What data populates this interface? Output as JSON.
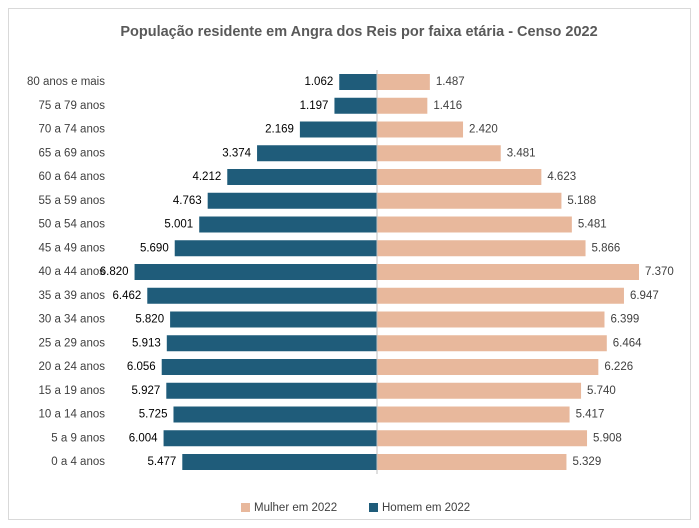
{
  "chart_data": {
    "type": "pyramid",
    "title": "População residente em Angra dos Reis por faixa etária - Censo 2022",
    "categories": [
      "80 anos e mais",
      "75 a 79 anos",
      "70 a 74 anos",
      "65 a 69 anos",
      "60 a 64 anos",
      "55 a 59 anos",
      "50 a 54 anos",
      "45 a 49 anos",
      "40 a 44 anos",
      "35 a 39 anos",
      "30 a 34 anos",
      "25 a 29 anos",
      "20 a 24 anos",
      "15 a 19 anos",
      "10 a 14 anos",
      "5 a 9 anos",
      "0 a 4 anos"
    ],
    "series": [
      {
        "name": "Mulher em 2022",
        "color": "#e8b89c",
        "values": [
          1487,
          1416,
          2420,
          3481,
          4623,
          5188,
          5481,
          5866,
          7370,
          6947,
          6399,
          6464,
          6226,
          5740,
          5417,
          5908,
          5329
        ],
        "value_labels": [
          "1.487",
          "1.416",
          "2.420",
          "3.481",
          "4.623",
          "5.188",
          "5.481",
          "5.866",
          "7.370",
          "6.947",
          "6.399",
          "6.464",
          "6.226",
          "5.740",
          "5.417",
          "5.908",
          "5.329"
        ]
      },
      {
        "name": "Homem em 2022",
        "color": "#1f5c7a",
        "values": [
          1062,
          1197,
          2169,
          3374,
          4212,
          4763,
          5001,
          5690,
          6820,
          6462,
          5820,
          5913,
          6056,
          5927,
          5725,
          6004,
          5477
        ],
        "value_labels": [
          "1.062",
          "1.197",
          "2.169",
          "3.374",
          "4.212",
          "4.763",
          "5.001",
          "5.690",
          "6.820",
          "6.462",
          "5.820",
          "5.913",
          "6.056",
          "5.927",
          "5.725",
          "6.004",
          "5.477"
        ]
      }
    ]
  }
}
